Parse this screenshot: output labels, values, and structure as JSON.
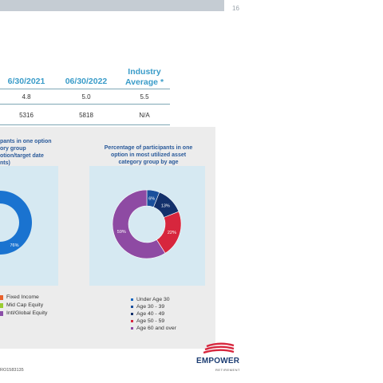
{
  "page": {
    "number": "16"
  },
  "table": {
    "headers": [
      "6/30/2021",
      "06/30/2022",
      "Industry",
      "Average *"
    ],
    "rows": [
      [
        "4.8",
        "5.0",
        "5.5"
      ],
      [
        "5316",
        "5818",
        "N/A"
      ]
    ]
  },
  "left_chart": {
    "title_lines": [
      "pants in one option",
      "ory group",
      "otion/target date",
      "nts)"
    ],
    "slice_label": "76%",
    "legend": [
      {
        "label": "Fixed Income",
        "color": "#e8612c"
      },
      {
        "label": "Mid Cap Equity",
        "color": "#9acd32"
      },
      {
        "label": "Intl/Global Equity",
        "color": "#8b4fa8"
      }
    ]
  },
  "right_chart": {
    "title_lines": [
      "Percentage of participants in one",
      "option in most utilized asset",
      "category group by age"
    ],
    "legend": [
      {
        "label": "Under Age 30",
        "color": "#1565c0"
      },
      {
        "label": "Age 30 - 39",
        "color": "#1a4f9c"
      },
      {
        "label": "Age 40 - 49",
        "color": "#13306b"
      },
      {
        "label": "Age 50 - 59",
        "color": "#d7263d"
      },
      {
        "label": "Age 60 and over",
        "color": "#8e4aa3"
      }
    ]
  },
  "chart_data": [
    {
      "type": "pie",
      "title": "",
      "labels": [
        ""
      ],
      "values": [
        76
      ],
      "value_labels": [
        "76%"
      ],
      "colors": [
        "#1a73d0"
      ]
    },
    {
      "type": "pie",
      "title": "Percentage of participants in one option in most utilized asset category group by age",
      "labels": [
        "",
        "",
        "",
        ""
      ],
      "values": [
        6,
        13,
        22,
        59
      ],
      "value_labels": [
        "6%",
        "13%",
        "22%",
        "59%"
      ],
      "colors": [
        "#1a4f9c",
        "#13306b",
        "#d7263d",
        "#8e4aa3"
      ]
    }
  ],
  "footer": {
    "code": "RO1583135"
  },
  "logo": {
    "word": "EMPOWER",
    "sub": "RETIREMENT"
  }
}
